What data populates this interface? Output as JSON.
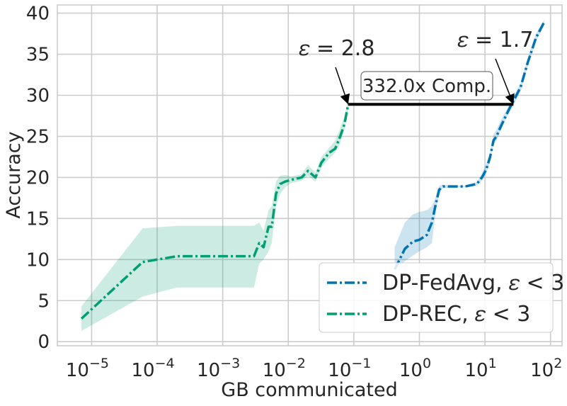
{
  "chart_data": {
    "type": "line",
    "xscale": "log",
    "xlabel": "GB communicated",
    "ylabel": "Accuracy",
    "xlim": [
      3e-06,
      150
    ],
    "ylim": [
      -0.5,
      41
    ],
    "grid": true,
    "legend_position": "bottom-right",
    "x_ticks": [
      {
        "value": 1e-05,
        "base": "10",
        "exp": "−5"
      },
      {
        "value": 0.0001,
        "base": "10",
        "exp": "−4"
      },
      {
        "value": 0.001,
        "base": "10",
        "exp": "−3"
      },
      {
        "value": 0.01,
        "base": "10",
        "exp": "−2"
      },
      {
        "value": 0.1,
        "base": "10",
        "exp": "−1"
      },
      {
        "value": 1,
        "base": "10",
        "exp": "0"
      },
      {
        "value": 10,
        "base": "10",
        "exp": "1"
      },
      {
        "value": 100,
        "base": "10",
        "exp": "2"
      }
    ],
    "y_ticks": [
      {
        "value": 0,
        "label": "0"
      },
      {
        "value": 5,
        "label": "5"
      },
      {
        "value": 10,
        "label": "10"
      },
      {
        "value": 15,
        "label": "15"
      },
      {
        "value": 20,
        "label": "20"
      },
      {
        "value": 25,
        "label": "25"
      },
      {
        "value": 30,
        "label": "30"
      },
      {
        "value": 35,
        "label": "35"
      },
      {
        "value": 40,
        "label": "40"
      }
    ],
    "series": [
      {
        "name": "DP-FedAvg, ε < 3",
        "legend_label": "DP-FedAvg, 𝜀 < 3",
        "color": "#0173b2",
        "linestyle": "dashdot",
        "points": [
          [
            0.42,
            8.8,
            8.8,
            11.5
          ],
          [
            0.6,
            11.3,
            9.8,
            14.5
          ],
          [
            0.8,
            12.2,
            10.5,
            15.5
          ],
          [
            1.0,
            12.4,
            11.0,
            15.8
          ],
          [
            1.3,
            13.0,
            11.5,
            16.0
          ],
          [
            1.55,
            14.5,
            12.0,
            16.5
          ],
          [
            1.75,
            16.5,
            15.5,
            17.5
          ],
          [
            2.0,
            18.5,
            18.0,
            19.0
          ],
          [
            2.3,
            18.9,
            18.7,
            19.1
          ],
          [
            3.0,
            18.9,
            18.8,
            19.0
          ],
          [
            5.0,
            18.9,
            18.8,
            19.0
          ],
          [
            7.5,
            19.2,
            19.0,
            19.4
          ],
          [
            9.0,
            20.0,
            19.6,
            20.5
          ],
          [
            10.5,
            21.0,
            20.5,
            21.7
          ],
          [
            12.0,
            22.5,
            22.0,
            23.0
          ],
          [
            13.5,
            24.5,
            24.0,
            25.2
          ],
          [
            15.0,
            25.0,
            24.5,
            25.8
          ],
          [
            17.0,
            26.0,
            25.5,
            26.8
          ],
          [
            20.0,
            27.2,
            26.8,
            27.8
          ],
          [
            24.0,
            28.5,
            28.0,
            29.0
          ],
          [
            28.0,
            29.5,
            29.0,
            30.0
          ],
          [
            35.0,
            31.0,
            30.5,
            31.5
          ],
          [
            45.0,
            34.0,
            33.5,
            34.5
          ],
          [
            60.0,
            37.0,
            36.5,
            37.5
          ],
          [
            80.0,
            38.9,
            38.6,
            39.2
          ]
        ]
      },
      {
        "name": "DP-REC, ε < 3",
        "legend_label": "DP-REC, 𝜀 < 3",
        "color": "#029e73",
        "linestyle": "dashdot",
        "points": [
          [
            7e-06,
            2.8,
            1.3,
            4.3
          ],
          [
            6e-05,
            9.7,
            5.5,
            13.8
          ],
          [
            0.0002,
            10.4,
            6.6,
            14.1
          ],
          [
            0.001,
            10.4,
            6.6,
            14.1
          ],
          [
            0.003,
            10.4,
            6.6,
            14.1
          ],
          [
            0.0036,
            12.0,
            9.5,
            14.5
          ],
          [
            0.0042,
            11.5,
            10.0,
            13.5
          ],
          [
            0.005,
            14.0,
            11.0,
            16.0
          ],
          [
            0.0056,
            14.0,
            12.0,
            16.5
          ],
          [
            0.0065,
            18.0,
            16.5,
            19.5
          ],
          [
            0.0075,
            19.2,
            18.0,
            20.2
          ],
          [
            0.009,
            19.5,
            18.8,
            20.3
          ],
          [
            0.011,
            19.7,
            19.3,
            20.1
          ],
          [
            0.016,
            20.0,
            19.6,
            20.4
          ],
          [
            0.02,
            20.8,
            20.2,
            21.5
          ],
          [
            0.026,
            20.0,
            19.5,
            20.6
          ],
          [
            0.032,
            21.8,
            21.2,
            22.5
          ],
          [
            0.042,
            23.0,
            22.3,
            23.6
          ],
          [
            0.052,
            23.5,
            23.0,
            24.5
          ],
          [
            0.062,
            25.0,
            24.2,
            26.0
          ],
          [
            0.072,
            26.5,
            25.8,
            27.5
          ],
          [
            0.082,
            28.9,
            28.4,
            29.4
          ]
        ]
      }
    ],
    "annotations": [
      {
        "label": "𝜀 = 2.8",
        "arrow_to": [
          0.082,
          28.9
        ]
      },
      {
        "label": "𝜀 = 1.7",
        "arrow_to": [
          27.2,
          28.9
        ]
      }
    ],
    "comparison": {
      "from": [
        0.082,
        28.9
      ],
      "to": [
        27.2,
        28.9
      ],
      "label": "332.0x Comp."
    }
  }
}
